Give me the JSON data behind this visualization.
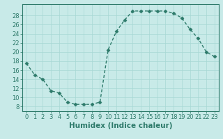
{
  "x": [
    0,
    1,
    2,
    3,
    4,
    5,
    6,
    7,
    8,
    9,
    10,
    11,
    12,
    13,
    14,
    15,
    16,
    17,
    18,
    19,
    20,
    21,
    22,
    23
  ],
  "y": [
    17.5,
    15.0,
    14.0,
    11.5,
    11.0,
    9.0,
    8.5,
    8.5,
    8.5,
    9.0,
    20.5,
    24.5,
    27.0,
    29.0,
    29.0,
    29.0,
    29.0,
    29.0,
    28.5,
    27.5,
    25.0,
    23.0,
    20.0,
    19.0
  ],
  "xlabel": "Humidex (Indice chaleur)",
  "xlim": [
    -0.5,
    23.5
  ],
  "ylim": [
    7,
    30.5
  ],
  "yticks": [
    8,
    10,
    12,
    14,
    16,
    18,
    20,
    22,
    24,
    26,
    28
  ],
  "xticks": [
    0,
    1,
    2,
    3,
    4,
    5,
    6,
    7,
    8,
    9,
    10,
    11,
    12,
    13,
    14,
    15,
    16,
    17,
    18,
    19,
    20,
    21,
    22,
    23
  ],
  "line_color": "#2d7a6a",
  "bg_color": "#c8eae8",
  "grid_color": "#a8d8d4",
  "marker": "D",
  "marker_size": 2.5,
  "line_width": 1.0,
  "xlabel_fontsize": 7.5,
  "tick_fontsize": 6.0
}
